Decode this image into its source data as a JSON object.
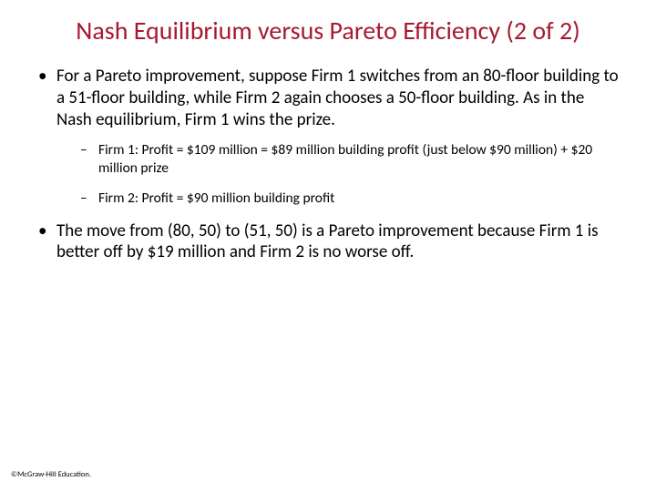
{
  "title_color": "#a6192e",
  "body_color": "#000000",
  "background_color": "#ffffff",
  "title": "Nash Equilibrium versus Pareto Efficiency (2 of 2)",
  "bullets": [
    {
      "text": "For a Pareto improvement, suppose Firm 1 switches from an 80-floor building to a 51-floor building, while Firm 2 again chooses a 50-floor building. As in the Nash equilibrium, Firm 1 wins the prize.",
      "sub": [
        "Firm 1: Profit = $109 million = $89 million building profit (just below $90 million) + $20 million prize",
        "Firm 2: Profit = $90 million building profit"
      ]
    },
    {
      "text": "The move from (80, 50) to (51, 50) is a Pareto improvement because Firm 1 is better off by $19 million and Firm 2 is no worse off.",
      "sub": []
    }
  ],
  "footer": "©McGraw-Hill Education."
}
